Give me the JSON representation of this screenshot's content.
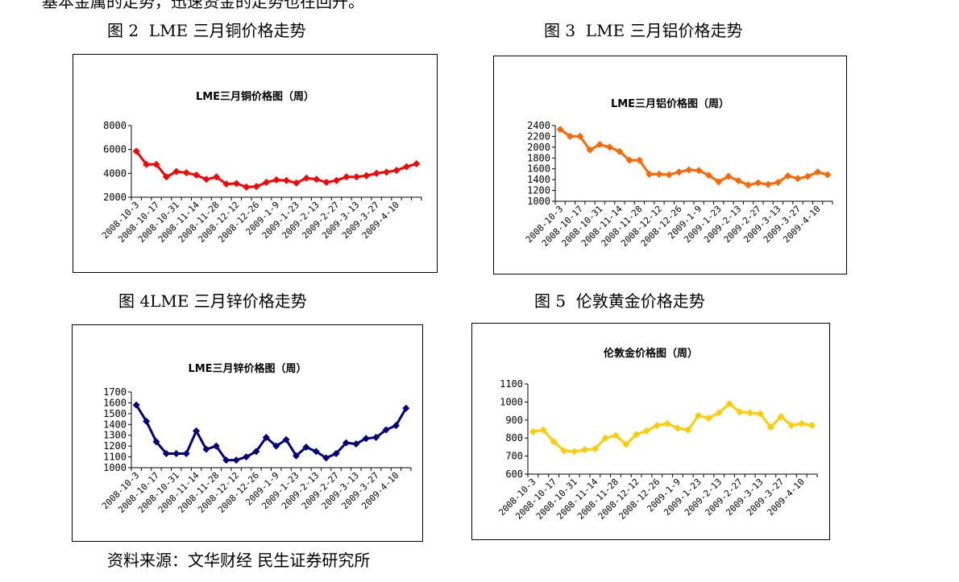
{
  "intro_fragment": "基本金属的走势，迅速资金的走势也在回升。",
  "captions": {
    "fig2": "图 2  LME 三月铜价格走势",
    "fig3": "图 3  LME 三月铝价格走势",
    "fig4": "图 4LME 三月锌价格走势",
    "fig5": "图 5  伦敦黄金价格走势"
  },
  "source": "资料来源：文华财经 民生证券研究所",
  "x_tick_labels": [
    "2008-10-3",
    "2008-10-17",
    "2008-10-31",
    "2008-11-14",
    "2008-11-28",
    "2008-12-12",
    "2008-12-26",
    "2009-1-9",
    "2009-1-23",
    "2009-2-13",
    "2009-2-27",
    "2009-3-13",
    "2009-3-27",
    "2009-4-10"
  ],
  "chart_data": [
    {
      "type": "line",
      "title": "LME三月铜价格图（周）",
      "color": "#ff0000",
      "marker": "diamond",
      "ylim": [
        2000,
        8000
      ],
      "yticks": [
        2000,
        4000,
        6000,
        8000
      ],
      "values": [
        5850,
        4750,
        4750,
        3700,
        4150,
        4050,
        3850,
        3500,
        3700,
        3100,
        3150,
        2850,
        2900,
        3250,
        3450,
        3400,
        3200,
        3600,
        3500,
        3250,
        3400,
        3700,
        3700,
        3800,
        4000,
        4100,
        4250,
        4550,
        4800
      ]
    },
    {
      "type": "line",
      "title": "LME三月铝价格图（周）",
      "color": "#ff6600",
      "marker": "diamond",
      "ylim": [
        1000,
        2400
      ],
      "yticks": [
        1000,
        1200,
        1400,
        1600,
        1800,
        2000,
        2200,
        2400
      ],
      "values": [
        2330,
        2200,
        2200,
        1950,
        2050,
        2000,
        1920,
        1760,
        1760,
        1500,
        1500,
        1490,
        1540,
        1580,
        1570,
        1480,
        1360,
        1460,
        1380,
        1300,
        1340,
        1310,
        1350,
        1470,
        1420,
        1460,
        1540,
        1490
      ]
    },
    {
      "type": "line",
      "title": "LME三月锌价格图（周）",
      "color": "#000080",
      "marker": "diamond",
      "ylim": [
        1000,
        1700
      ],
      "yticks": [
        1000,
        1100,
        1200,
        1300,
        1400,
        1500,
        1600,
        1700
      ],
      "values": [
        1580,
        1430,
        1240,
        1130,
        1130,
        1130,
        1340,
        1170,
        1200,
        1070,
        1070,
        1100,
        1150,
        1280,
        1200,
        1260,
        1110,
        1190,
        1150,
        1090,
        1130,
        1230,
        1220,
        1270,
        1280,
        1350,
        1390,
        1550
      ]
    },
    {
      "type": "line",
      "title": "伦敦金价格图（周）",
      "color": "#ffcc00",
      "marker": "diamond",
      "ylim": [
        600,
        1100
      ],
      "yticks": [
        600,
        700,
        800,
        900,
        1000,
        1100
      ],
      "values": [
        835,
        845,
        780,
        730,
        725,
        735,
        740,
        800,
        815,
        765,
        820,
        840,
        870,
        880,
        855,
        845,
        925,
        910,
        940,
        990,
        945,
        940,
        935,
        860,
        920,
        870,
        880,
        870
      ]
    }
  ]
}
